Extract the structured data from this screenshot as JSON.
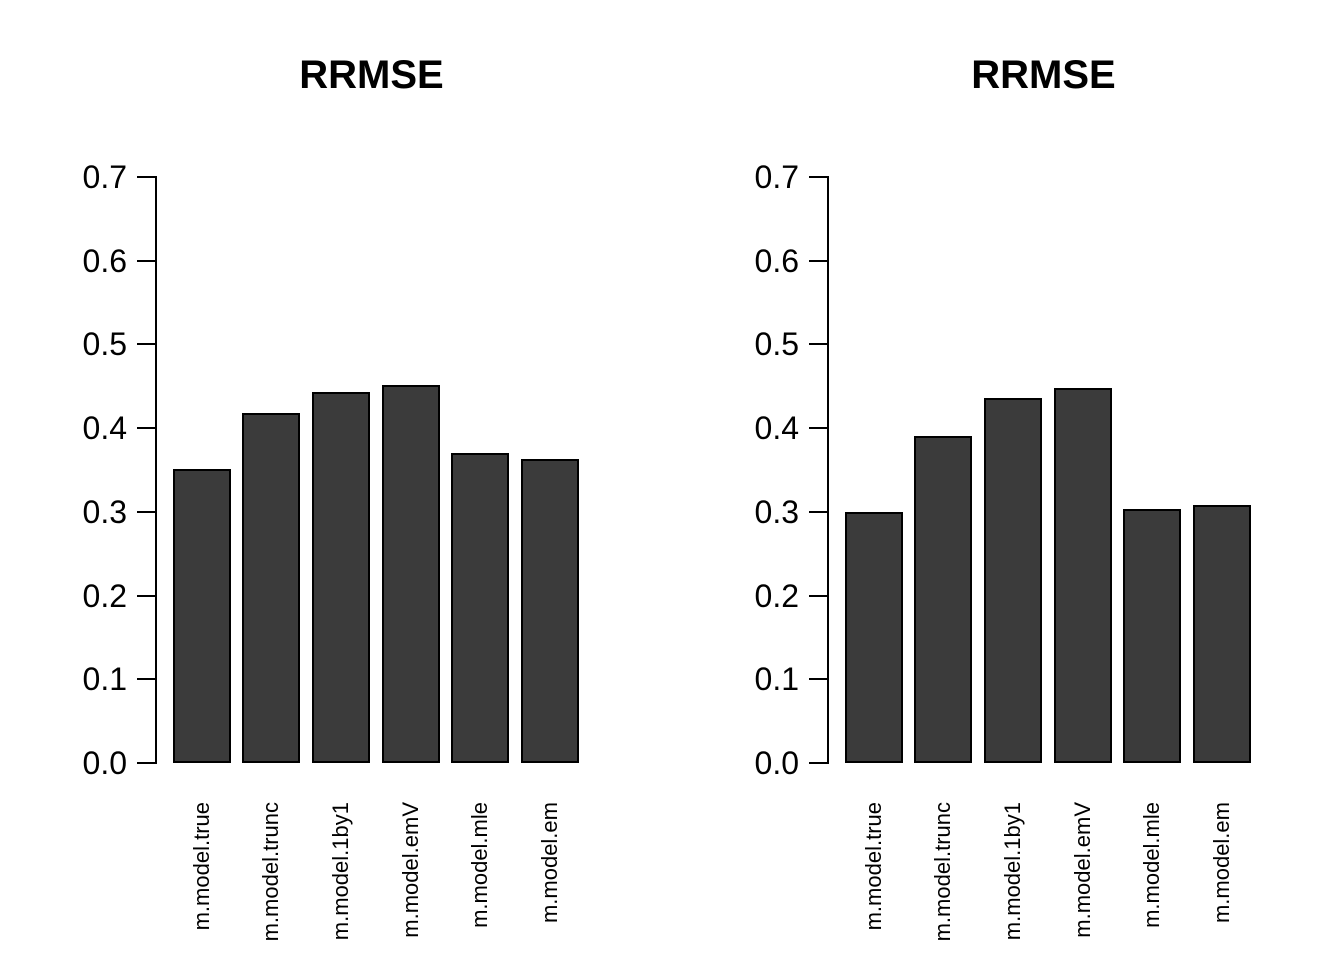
{
  "figure": {
    "background": "#ffffff",
    "bar_fill": "#3b3b3b",
    "bar_border": "#000000",
    "axis_color": "#000000",
    "text_color": "#000000"
  },
  "chart_data": [
    {
      "type": "bar",
      "title": "RRMSE",
      "categories": [
        "m.model.true",
        "m.model.trunc",
        "m.model.1by1",
        "m.model.emV",
        "m.model.mle",
        "m.model.em"
      ],
      "values": [
        0.351,
        0.418,
        0.443,
        0.452,
        0.37,
        0.363
      ],
      "xlabel": "",
      "ylabel": "",
      "ylim": [
        0,
        0.7
      ],
      "yticks": [
        "0.0",
        "0.1",
        "0.2",
        "0.3",
        "0.4",
        "0.5",
        "0.6",
        "0.7"
      ],
      "grid": false,
      "legend_position": "none",
      "x_label_rotation": -90
    },
    {
      "type": "bar",
      "title": "RRMSE",
      "categories": [
        "m.model.true",
        "m.model.trunc",
        "m.model.1by1",
        "m.model.emV",
        "m.model.mle",
        "m.model.em"
      ],
      "values": [
        0.3,
        0.391,
        0.436,
        0.448,
        0.303,
        0.308
      ],
      "xlabel": "",
      "ylabel": "",
      "ylim": [
        0,
        0.7
      ],
      "yticks": [
        "0.0",
        "0.1",
        "0.2",
        "0.3",
        "0.4",
        "0.5",
        "0.6",
        "0.7"
      ],
      "grid": false,
      "legend_position": "none",
      "x_label_rotation": -90
    }
  ]
}
